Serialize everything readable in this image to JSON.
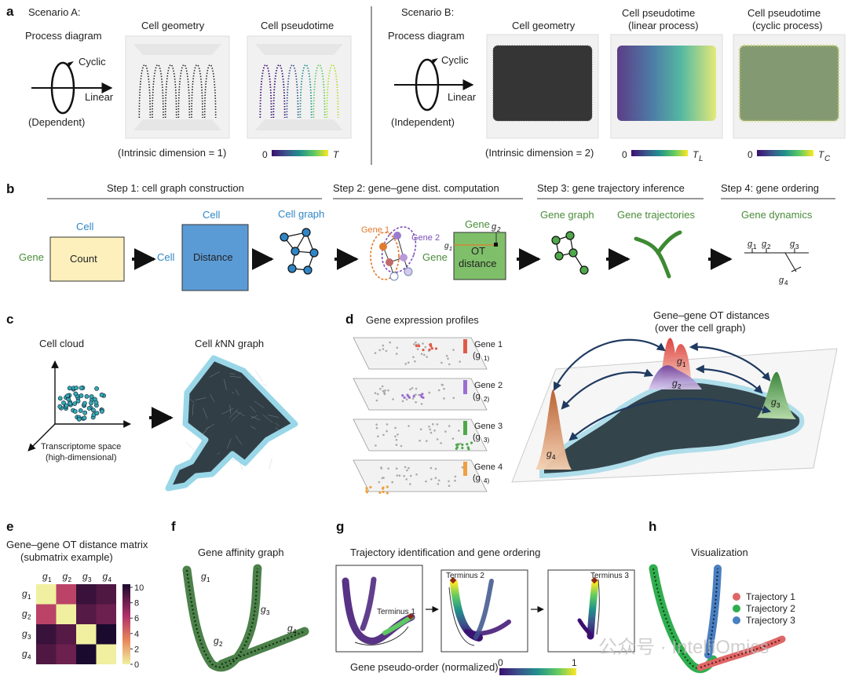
{
  "panel_labels": {
    "a": "a",
    "b": "b",
    "c": "c",
    "d": "d",
    "e": "e",
    "f": "f",
    "g": "g",
    "h": "h"
  },
  "panel_a": {
    "scenario_a": "Scenario A:",
    "scenario_b": "Scenario B:",
    "process_diagram": "Process diagram",
    "cyclic": "Cyclic",
    "linear": "Linear",
    "dependent": "(Dependent)",
    "independent": "(Independent)",
    "cell_geometry": "Cell geometry",
    "cell_pseudotime": "Cell pseudotime",
    "pseudotime_linear_1": "Cell pseudotime",
    "pseudotime_linear_2": "(linear process)",
    "pseudotime_cyclic_1": "Cell pseudotime",
    "pseudotime_cyclic_2": "(cyclic process)",
    "intrinsic_1": "(Intrinsic dimension = 1)",
    "intrinsic_2": "(Intrinsic dimension = 2)",
    "cbar_zero": "0",
    "cbar_T": "T",
    "cbar_TL": "T",
    "cbar_TL_sub": "L",
    "cbar_TC": "T",
    "cbar_TC_sub": "C"
  },
  "panel_b": {
    "step1": "Step 1: cell graph construction",
    "step2": "Step 2: gene–gene dist. computation",
    "step3": "Step 3: gene trajectory inference",
    "step4": "Step 4: gene ordering",
    "cell": "Cell",
    "gene": "Gene",
    "count": "Count",
    "distance": "Distance",
    "cell_graph": "Cell graph",
    "gene1": "Gene 1",
    "gene2": "Gene 2",
    "ot_1": "OT",
    "ot_2": "distance",
    "g1": "g",
    "g1_sub": "1",
    "g2": "g",
    "g2_sub": "2",
    "gene_graph": "Gene graph",
    "gene_trajectories": "Gene trajectories",
    "gene_dynamics": "Gene dynamics",
    "dyn_g1": "g",
    "dyn_g1_sub": "1",
    "dyn_g2": "g",
    "dyn_g2_sub": "2",
    "dyn_g3": "g",
    "dyn_g3_sub": "3",
    "dyn_g4": "g",
    "dyn_g4_sub": "4"
  },
  "panel_c": {
    "cell_cloud": "Cell cloud",
    "knn_pre": "Cell ",
    "knn_k": "k",
    "knn_post": "NN graph",
    "space_1": "Transcriptome space",
    "space_2": "(high-dimensional)"
  },
  "panel_d": {
    "profiles": "Gene expression profiles",
    "genes": [
      {
        "name": "Gene 1",
        "sym": "g",
        "sub": "1"
      },
      {
        "name": "Gene 2",
        "sym": "g",
        "sub": "2"
      },
      {
        "name": "Gene 3",
        "sym": "g",
        "sub": "3"
      },
      {
        "name": "Gene 4",
        "sym": "g",
        "sub": "4"
      }
    ],
    "ot_title_1": "Gene–gene OT distances",
    "ot_title_2": "(over the cell graph)",
    "peak_labels": [
      {
        "sym": "g",
        "sub": "1"
      },
      {
        "sym": "g",
        "sub": "2"
      },
      {
        "sym": "g",
        "sub": "3"
      },
      {
        "sym": "g",
        "sub": "4"
      }
    ]
  },
  "panel_e": {
    "title_1": "Gene–gene OT distance matrix",
    "title_2": "(submatrix example)",
    "genes": [
      {
        "sym": "g",
        "sub": "1"
      },
      {
        "sym": "g",
        "sub": "2"
      },
      {
        "sym": "g",
        "sub": "3"
      },
      {
        "sym": "g",
        "sub": "4"
      }
    ],
    "matrix": [
      [
        0,
        5.5,
        9.2,
        8.6
      ],
      [
        5.5,
        0,
        8.4,
        7.8
      ],
      [
        9.2,
        8.4,
        0,
        10
      ],
      [
        8.6,
        7.8,
        10,
        0
      ]
    ],
    "colorbar_ticks": [
      "10",
      "8",
      "6",
      "4",
      "2",
      "0"
    ]
  },
  "panel_f": {
    "title": "Gene affinity graph",
    "labels": [
      {
        "sym": "g",
        "sub": "1"
      },
      {
        "sym": "g",
        "sub": "2"
      },
      {
        "sym": "g",
        "sub": "3"
      },
      {
        "sym": "g",
        "sub": "4"
      }
    ]
  },
  "panel_g": {
    "title": "Trajectory identification and gene ordering",
    "terminus1": "Terminus 1",
    "terminus2": "Terminus 2",
    "terminus3": "Terminus 3",
    "cbar_label": "Gene pseudo-order (normalized)",
    "cbar_min": "0",
    "cbar_max": "1"
  },
  "panel_h": {
    "title": "Visualization",
    "legend": [
      {
        "name": "Trajectory 1",
        "color": "#e06666"
      },
      {
        "name": "Trajectory 2",
        "color": "#2fae4e"
      },
      {
        "name": "Trajectory 3",
        "color": "#4a7fc1"
      }
    ]
  },
  "watermark": {
    "text": "公众号 · IntelliOmics"
  },
  "colors": {
    "cell_blue": "#2f86c6",
    "gene_green": "#4a8c3a",
    "count_fill": "#fdf0bd",
    "distance_fill": "#5b9bd5",
    "ot_fill": "#7fbf6a"
  }
}
